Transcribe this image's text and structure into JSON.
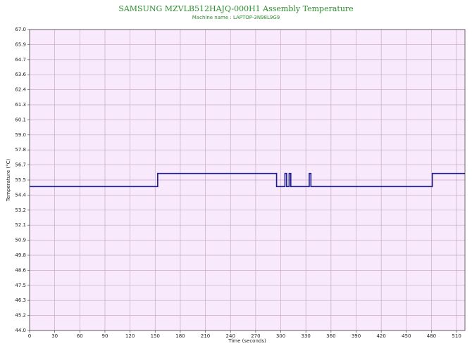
{
  "chart_data": {
    "type": "line",
    "title": "SAMSUNG MZVLB512HAJQ-000H1 Assembly Temperature",
    "subtitle": "Machine name : LAPTOP-3N98L9G9",
    "x_label": "Time (seconds)",
    "y_label": "Temperature (°C)",
    "x": [
      0,
      153,
      153,
      295,
      295,
      305,
      305,
      307,
      307,
      310,
      310,
      312,
      312,
      334,
      334,
      336,
      336,
      481,
      481,
      520
    ],
    "series": [
      {
        "color": "#1c1c8c",
        "values": [
          55,
          55,
          56,
          56,
          55,
          55,
          56,
          56,
          55,
          55,
          56,
          56,
          55,
          55,
          56,
          56,
          55,
          55,
          56,
          56
        ]
      }
    ],
    "xlim": [
      0,
      520
    ],
    "ylim": [
      44,
      67
    ],
    "xticks": [
      0,
      30,
      60,
      90,
      120,
      150,
      180,
      210,
      240,
      270,
      300,
      330,
      360,
      390,
      420,
      450,
      480,
      510
    ],
    "yticks": [
      {
        "value": 67,
        "label": "67.0"
      },
      {
        "value": 65.85,
        "label": "65.9"
      },
      64.7,
      {
        "value": 63.55,
        "label": "63.6"
      },
      62.4,
      {
        "value": 61.25,
        "label": "61.3"
      },
      60.1,
      {
        "value": 58.95,
        "label": "59.0"
      },
      57.8,
      {
        "value": 56.65,
        "label": "56.7"
      },
      55.5,
      {
        "value": 54.35,
        "label": "54.4"
      },
      53.2,
      {
        "value": 52.05,
        "label": "52.1"
      },
      50.9,
      {
        "value": 49.75,
        "label": "49.8"
      },
      48.6,
      {
        "value": 47.45,
        "label": "47.5"
      },
      46.3,
      {
        "value": 45.15,
        "label": "45.2"
      },
      {
        "value": 44,
        "label": "44.0"
      }
    ],
    "grid": true,
    "background": "#f8eafc"
  }
}
